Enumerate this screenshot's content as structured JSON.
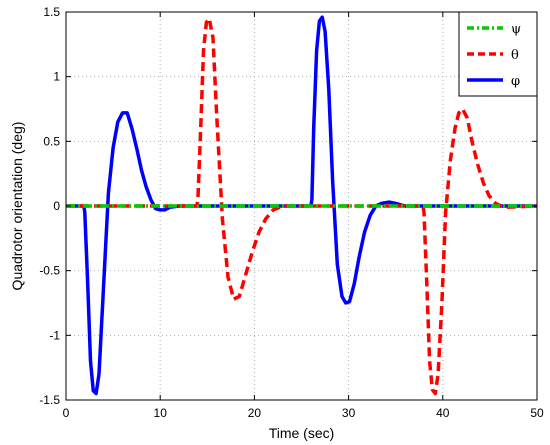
{
  "chart_data": {
    "type": "line",
    "xlabel": "Time (sec)",
    "ylabel": "Quadrotor orientation (deg)",
    "xlim": [
      0,
      50
    ],
    "ylim": [
      -1.5,
      1.5
    ],
    "x_ticks": [
      "0",
      "10",
      "20",
      "30",
      "40",
      "50"
    ],
    "y_ticks": [
      "-1.5",
      "-1",
      "-0.5",
      "0",
      "0.5",
      "1",
      "1.5"
    ],
    "grid": true,
    "legend_position": "top-right",
    "series": [
      {
        "name": "ψ",
        "color": "#00cc00",
        "style": "dash-dot",
        "x": [
          0,
          50
        ],
        "y": [
          0,
          0
        ]
      },
      {
        "name": "θ",
        "color": "#ff0000",
        "style": "dashed",
        "x": [
          0,
          13.9,
          14.0,
          14.3,
          14.6,
          14.9,
          15.2,
          15.6,
          16.0,
          16.6,
          17.2,
          17.8,
          18.4,
          19.0,
          19.8,
          20.5,
          21.2,
          22.0,
          23.0,
          24.0,
          37.9,
          38.0,
          38.3,
          38.6,
          38.9,
          39.2,
          39.5,
          39.9,
          40.3,
          40.8,
          41.3,
          41.7,
          42.1,
          42.6,
          43.1,
          43.7,
          44.3,
          44.9,
          45.6,
          46.5,
          50
        ],
        "y": [
          0,
          0,
          0.05,
          0.6,
          1.2,
          1.42,
          1.45,
          1.3,
          0.7,
          -0.1,
          -0.55,
          -0.72,
          -0.7,
          -0.55,
          -0.35,
          -0.2,
          -0.1,
          -0.03,
          0.0,
          0,
          0,
          -0.05,
          -0.6,
          -1.2,
          -1.42,
          -1.45,
          -1.3,
          -0.75,
          -0.05,
          0.35,
          0.6,
          0.72,
          0.75,
          0.68,
          0.5,
          0.32,
          0.18,
          0.08,
          0.02,
          -0.01,
          0
        ]
      },
      {
        "name": "φ",
        "color": "#0000ff",
        "style": "solid",
        "x": [
          0,
          1.9,
          2.0,
          2.3,
          2.6,
          2.9,
          3.2,
          3.5,
          4.0,
          4.5,
          5.0,
          5.5,
          6.0,
          6.5,
          7.0,
          7.5,
          8.0,
          8.5,
          9.0,
          9.5,
          10.0,
          10.5,
          11.0,
          12.0,
          13.0,
          26.0,
          26.1,
          26.3,
          26.6,
          26.9,
          27.2,
          27.5,
          27.9,
          28.3,
          28.8,
          29.3,
          29.7,
          30.1,
          30.6,
          31.1,
          31.7,
          32.3,
          32.9,
          33.5,
          34.3,
          35.0,
          36.0,
          50
        ],
        "y": [
          0,
          0,
          -0.05,
          -0.6,
          -1.2,
          -1.43,
          -1.45,
          -1.3,
          -0.6,
          0.1,
          0.45,
          0.65,
          0.72,
          0.72,
          0.6,
          0.45,
          0.28,
          0.15,
          0.05,
          -0.02,
          -0.03,
          -0.03,
          -0.01,
          0.0,
          0.0,
          0,
          0.05,
          0.6,
          1.2,
          1.43,
          1.46,
          1.35,
          0.9,
          0.2,
          -0.45,
          -0.7,
          -0.75,
          -0.74,
          -0.6,
          -0.4,
          -0.2,
          -0.07,
          0.0,
          0.02,
          0.03,
          0.02,
          0.0,
          0
        ]
      }
    ]
  }
}
